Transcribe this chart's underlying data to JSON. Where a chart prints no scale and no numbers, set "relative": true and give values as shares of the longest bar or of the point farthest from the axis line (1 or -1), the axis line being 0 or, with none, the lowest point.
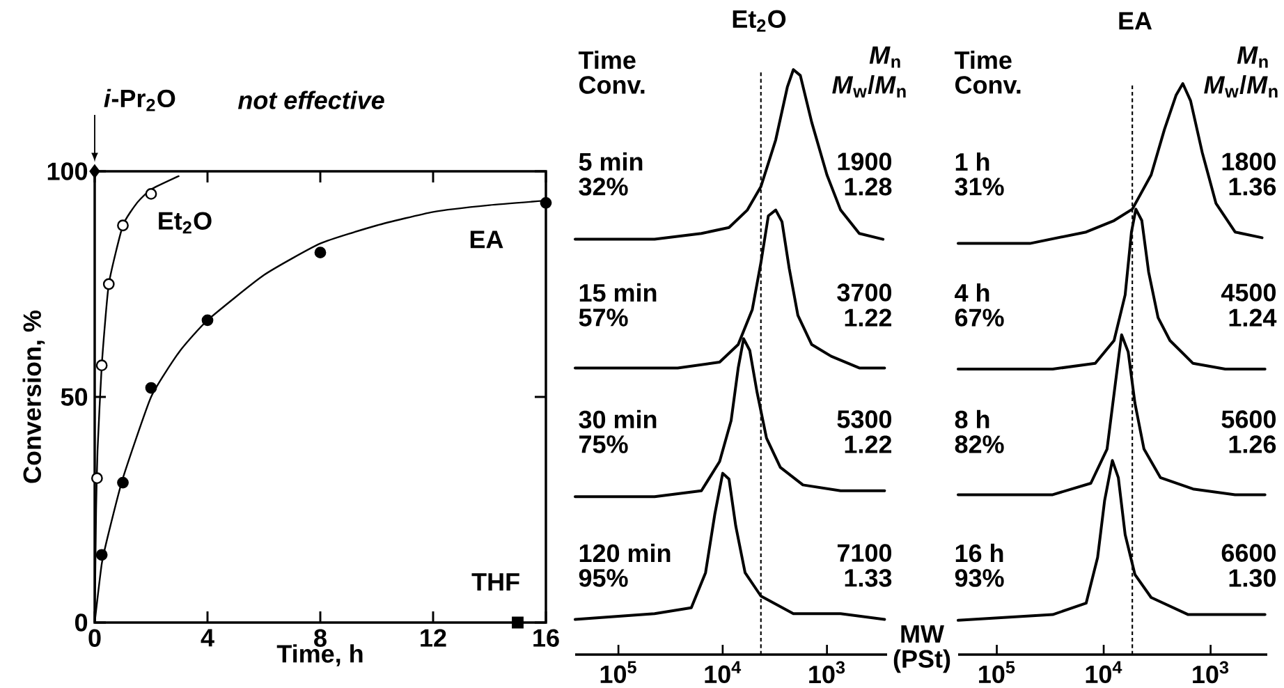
{
  "chart_data": [
    {
      "type": "scatter",
      "xlabel": "Time, h",
      "ylabel": "Conversion, %",
      "xlim": [
        0,
        16
      ],
      "ylim": [
        0,
        100
      ],
      "xticks": [
        0,
        4,
        8,
        12,
        16
      ],
      "yticks": [
        0,
        50,
        100
      ],
      "annotations": [
        "*not effective*"
      ],
      "series": [
        {
          "name": "Et$_{2}$O",
          "type": "scatter",
          "marker": "circle",
          "color": "#ffffff",
          "x": [
            0.083,
            0.25,
            0.5,
            1,
            2
          ],
          "values": [
            32,
            57,
            75,
            88,
            95
          ]
        },
        {
          "name": "EA",
          "type": "scatter",
          "marker": "circle",
          "color": "#000000",
          "x": [
            0.25,
            1,
            2,
            4,
            8,
            16
          ],
          "values": [
            15,
            31,
            52,
            67,
            82,
            93
          ]
        },
        {
          "name": "*i*-Pr$_{2}$O",
          "type": "scatter",
          "marker": "diamond",
          "color": "#000000",
          "x": [
            0
          ],
          "values": [
            100
          ]
        },
        {
          "name": "THF",
          "type": "scatter",
          "marker": "square",
          "color": "#000000",
          "x": [
            15
          ],
          "values": [
            0
          ]
        },
        {
          "type": "line",
          "color": "#000000",
          "x": [
            0,
            0.05,
            0.1,
            0.25,
            0.5,
            1,
            1.5,
            2,
            3
          ],
          "values": [
            0,
            25,
            38,
            57,
            75,
            88,
            93,
            96,
            99
          ]
        },
        {
          "type": "line",
          "color": "#000000",
          "x": [
            0,
            0.25,
            0.5,
            1,
            2,
            3,
            4,
            6,
            8,
            10,
            12,
            14,
            16
          ],
          "values": [
            0,
            13,
            20,
            32,
            50,
            60,
            67,
            77,
            84,
            88,
            91,
            92.5,
            93.5
          ]
        }
      ]
    },
    {
      "type": "line",
      "relative": true,
      "title": "Et$_{2}$O",
      "xlabel": "MW (PSt)",
      "xlim": [
        260000,
        265
      ],
      "log": "x",
      "tick_labels": "x",
      "xticks": [
        {
          "value": 100000,
          "label": "10$^{5}$"
        },
        {
          "value": 10000,
          "label": "10$^{4}$"
        },
        {
          "value": 1000,
          "label": "10$^{3}$"
        }
      ],
      "ref_lines": [
        {
          "axis": "x",
          "value": 4300,
          "line_style": "dashed"
        }
      ],
      "annotations": [
        "5 min",
        "32%",
        "1900",
        "1.28",
        "15 min",
        "57%",
        "3700",
        "1.22",
        "30 min",
        "75%",
        "5300",
        "1.22",
        "120 min",
        "95%",
        "7100",
        "1.33",
        "Time",
        "Conv.",
        "*M*$_{n}$",
        "*M*$_{w}$/*M*$_{n}$"
      ],
      "series": [
        {
          "color": "#000000",
          "x": [
            260000,
            45000,
            16000,
            8700,
            5800,
            4300,
            3100,
            2400,
            2100,
            1800,
            1400,
            1000,
            740,
            490,
            290
          ],
          "values": [
            0.71,
            0.71,
            0.72,
            0.73,
            0.76,
            0.8,
            0.88,
            0.97,
            1,
            0.99,
            0.91,
            0.82,
            0.76,
            0.72,
            0.71
          ]
        },
        {
          "color": "#000000",
          "x": [
            260000,
            27000,
            10700,
            7100,
            5200,
            4300,
            3650,
            3100,
            2700,
            2300,
            1900,
            1400,
            910,
            490,
            280
          ],
          "values": [
            0.49,
            0.49,
            0.5,
            0.53,
            0.59,
            0.67,
            0.75,
            0.76,
            0.74,
            0.66,
            0.58,
            0.53,
            0.51,
            0.49,
            0.49
          ]
        },
        {
          "color": "#000000",
          "x": [
            260000,
            45000,
            16000,
            10700,
            8300,
            7100,
            6300,
            5500,
            4700,
            3800,
            2800,
            1700,
            740,
            280
          ],
          "values": [
            0.27,
            0.27,
            0.28,
            0.33,
            0.4,
            0.49,
            0.54,
            0.52,
            0.45,
            0.37,
            0.32,
            0.29,
            0.28,
            0.28
          ]
        },
        {
          "color": "#000000",
          "x": [
            260000,
            45000,
            20000,
            14600,
            11900,
            10000,
            8700,
            7500,
            6100,
            4300,
            2100,
            740,
            280
          ],
          "values": [
            0.06,
            0.07,
            0.08,
            0.14,
            0.24,
            0.31,
            0.3,
            0.22,
            0.14,
            0.1,
            0.07,
            0.07,
            0.06
          ]
        }
      ]
    },
    {
      "type": "line",
      "relative": true,
      "title": "EA",
      "xlim": [
        230000,
        295
      ],
      "log": "x",
      "tick_labels": "x",
      "xticks": [
        {
          "value": 100000,
          "label": "10$^{5}$"
        },
        {
          "value": 10000,
          "label": "10$^{4}$"
        },
        {
          "value": 1000,
          "label": "10$^{3}$"
        }
      ],
      "ref_lines": [
        {
          "axis": "x",
          "value": 5400,
          "line_style": "dashed"
        }
      ],
      "annotations": [
        "1 h",
        "31%",
        "1800",
        "1.36",
        "4 h",
        "67%",
        "4500",
        "1.24",
        "8 h",
        "82%",
        "5600",
        "1.26",
        "16 h",
        "93%",
        "6600",
        "1.30",
        "Time",
        "Conv.",
        "*M*$_{n}$",
        "*M*$_{w}$/*M*$_{n}$"
      ],
      "series": [
        {
          "color": "#000000",
          "x": [
            230000,
            49000,
            14600,
            8000,
            5400,
            3600,
            2700,
            2100,
            1820,
            1540,
            1200,
            890,
            590,
            330
          ],
          "values": [
            0.72,
            0.72,
            0.74,
            0.76,
            0.78,
            0.84,
            0.92,
            0.98,
            1,
            0.97,
            0.88,
            0.79,
            0.74,
            0.73
          ]
        },
        {
          "color": "#000000",
          "x": [
            230000,
            30000,
            12000,
            8000,
            6300,
            5500,
            5000,
            4400,
            3800,
            3100,
            2400,
            1460,
            730,
            310
          ],
          "values": [
            0.5,
            0.5,
            0.51,
            0.55,
            0.63,
            0.74,
            0.78,
            0.76,
            0.67,
            0.59,
            0.55,
            0.51,
            0.5,
            0.5
          ]
        },
        {
          "color": "#000000",
          "x": [
            230000,
            30000,
            13200,
            9300,
            7600,
            6800,
            5900,
            5100,
            4200,
            2950,
            1460,
            590,
            310
          ],
          "values": [
            0.28,
            0.28,
            0.3,
            0.36,
            0.49,
            0.56,
            0.53,
            0.44,
            0.36,
            0.31,
            0.29,
            0.28,
            0.28
          ]
        },
        {
          "color": "#000000",
          "x": [
            230000,
            30000,
            14600,
            11400,
            9800,
            8300,
            7300,
            6300,
            5100,
            3600,
            1620,
            590,
            310
          ],
          "values": [
            0.06,
            0.07,
            0.09,
            0.17,
            0.27,
            0.34,
            0.31,
            0.21,
            0.14,
            0.1,
            0.07,
            0.07,
            0.07
          ]
        }
      ]
    }
  ]
}
